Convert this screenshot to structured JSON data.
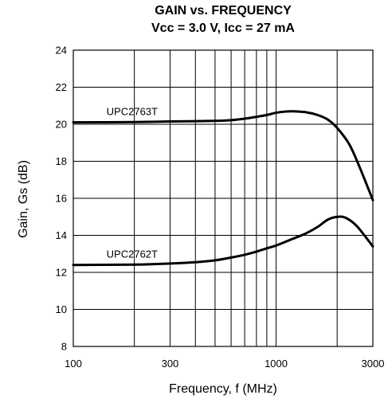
{
  "chart_data": {
    "type": "line",
    "title": "GAIN vs. FREQUENCY",
    "subtitle": "Vcc = 3.0 V, Icc = 27 mA",
    "xlabel": "Frequency, f (MHz)",
    "ylabel": "Gain, Gs (dB)",
    "x_scale": "log",
    "xlim": [
      100,
      3000
    ],
    "ylim": [
      8,
      24
    ],
    "x_ticks": [
      100,
      300,
      1000,
      3000
    ],
    "y_ticks": [
      8,
      10,
      12,
      14,
      16,
      18,
      20,
      22,
      24
    ],
    "grid": true,
    "series": [
      {
        "name": "UPC2763T",
        "x": [
          100,
          200,
          300,
          500,
          600,
          700,
          800,
          900,
          1000,
          1100,
          1200,
          1400,
          1600,
          1800,
          2000,
          2300,
          2600,
          3000
        ],
        "y": [
          20.1,
          20.12,
          20.15,
          20.18,
          20.22,
          20.3,
          20.4,
          20.5,
          20.62,
          20.68,
          20.7,
          20.65,
          20.5,
          20.25,
          19.8,
          18.9,
          17.6,
          15.9
        ]
      },
      {
        "name": "UPC2762T",
        "x": [
          100,
          200,
          300,
          400,
          500,
          600,
          700,
          800,
          900,
          1000,
          1200,
          1400,
          1600,
          1800,
          2000,
          2200,
          2500,
          3000
        ],
        "y": [
          12.4,
          12.42,
          12.48,
          12.55,
          12.65,
          12.8,
          12.95,
          13.12,
          13.3,
          13.45,
          13.8,
          14.1,
          14.45,
          14.85,
          15.0,
          14.95,
          14.5,
          13.4
        ]
      }
    ]
  }
}
